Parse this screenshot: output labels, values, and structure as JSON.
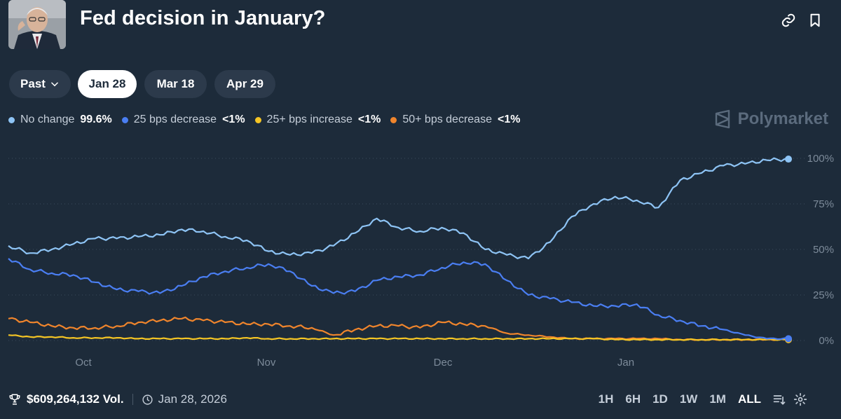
{
  "header": {
    "title": "Fed decision in January?",
    "avatar": "Jerome Powell portrait",
    "actions": [
      {
        "name": "link-icon"
      },
      {
        "name": "bookmark-icon"
      }
    ]
  },
  "tabs": [
    {
      "label": "Past",
      "icon": "chevron-down-icon",
      "active": false
    },
    {
      "label": "Jan 28",
      "active": true
    },
    {
      "label": "Mar 18",
      "active": false
    },
    {
      "label": "Apr 29",
      "active": false
    }
  ],
  "legend": [
    {
      "label": "No change",
      "value": "99.6%",
      "color": "#8ec4f5"
    },
    {
      "label": "25 bps decrease",
      "value": "<1%",
      "color": "#4a7ef2"
    },
    {
      "label": "25+ bps increase",
      "value": "<1%",
      "color": "#f5c524"
    },
    {
      "label": "50+ bps decrease",
      "value": "<1%",
      "color": "#f0852c"
    }
  ],
  "brand": "Polymarket",
  "chart_data": {
    "type": "line",
    "x_ticks": [
      "Oct",
      "Nov",
      "Dec",
      "Jan"
    ],
    "y_ticks": [
      "100%",
      "75%",
      "50%",
      "25%",
      "0%"
    ],
    "ylim": [
      0,
      100
    ],
    "grid": true,
    "series": [
      {
        "name": "No change",
        "color": "#8ec4f5",
        "values": [
          52,
          48,
          50,
          53,
          56,
          56,
          57,
          58,
          61,
          60,
          57,
          55,
          49,
          47,
          48,
          52,
          59,
          67,
          62,
          60,
          62,
          59,
          50,
          47,
          45,
          54,
          68,
          75,
          79,
          77,
          73,
          88,
          92,
          96,
          97,
          99,
          99.6
        ]
      },
      {
        "name": "25 bps decrease",
        "color": "#4a7ef2",
        "values": [
          45,
          39,
          37,
          36,
          32,
          28,
          27,
          26,
          30,
          35,
          38,
          40,
          42,
          38,
          30,
          26,
          27,
          33,
          35,
          36,
          40,
          43,
          42,
          33,
          25,
          23,
          21,
          19,
          19,
          20,
          14,
          11,
          8,
          6,
          3,
          1,
          1
        ]
      },
      {
        "name": "25+ bps increase",
        "color": "#f5c524",
        "values": [
          3,
          2,
          2,
          1.5,
          1.5,
          1.5,
          1,
          1,
          1,
          1,
          1,
          1.5,
          1,
          1,
          1,
          1,
          1,
          1,
          1,
          1,
          1,
          1,
          1,
          1,
          1,
          1,
          1,
          1,
          0.5,
          0.5,
          0.5,
          0.5,
          0.5,
          0.5,
          0.5,
          0.5,
          0.5
        ]
      },
      {
        "name": "50+ bps decrease",
        "color": "#f0852c",
        "values": [
          12,
          10,
          8,
          7,
          7,
          8,
          10,
          11,
          12,
          11,
          10,
          9,
          9,
          8,
          7,
          3,
          6,
          8,
          8,
          7,
          10,
          9,
          8,
          4,
          3,
          2,
          1,
          1,
          1,
          1,
          1,
          0.5,
          0.5,
          0.5,
          0.5,
          0.5,
          0.5
        ]
      }
    ]
  },
  "footer": {
    "volume": "$609,264,132 Vol.",
    "date": "Jan 28, 2026",
    "ranges": [
      {
        "label": "1H",
        "active": false
      },
      {
        "label": "6H",
        "active": false
      },
      {
        "label": "1D",
        "active": false
      },
      {
        "label": "1W",
        "active": false
      },
      {
        "label": "1M",
        "active": false
      },
      {
        "label": "ALL",
        "active": true
      }
    ]
  }
}
